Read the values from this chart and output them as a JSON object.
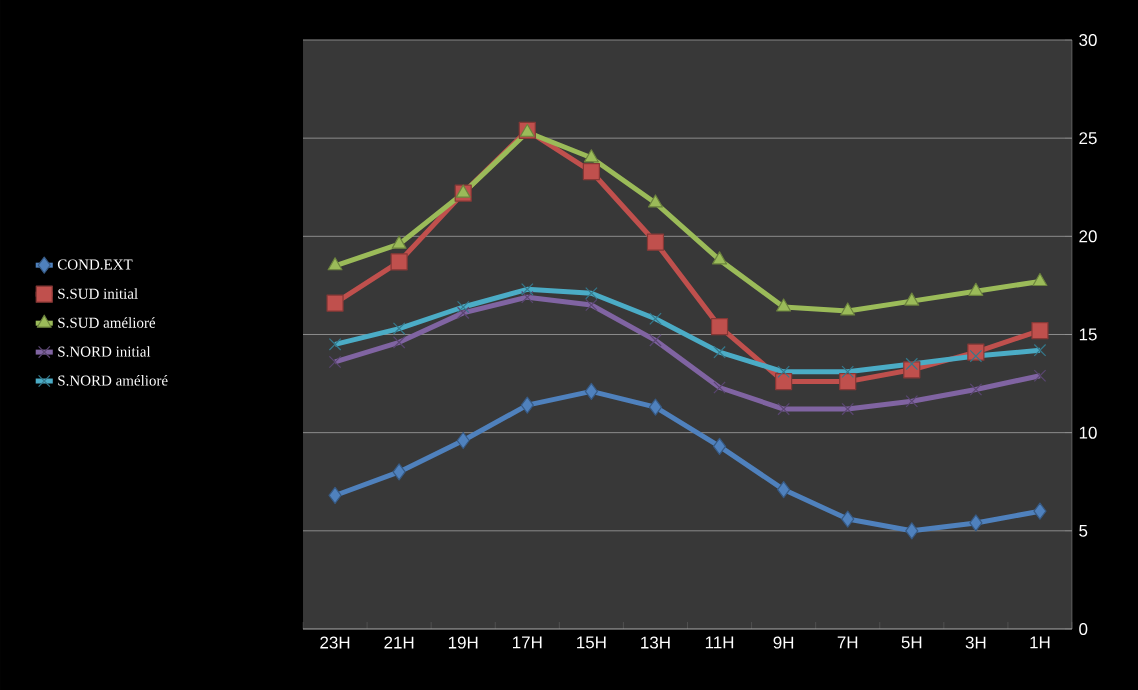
{
  "chart_data": {
    "type": "line",
    "categories": [
      "23H",
      "21H",
      "19H",
      "17H",
      "15H",
      "13H",
      "11H",
      "9H",
      "7H",
      "5H",
      "3H",
      "1H"
    ],
    "series": [
      {
        "name": "COND.EXT",
        "color": "#4f81bd",
        "marker": "diamond",
        "values": [
          6.8,
          8.0,
          9.6,
          11.4,
          12.1,
          11.3,
          9.3,
          7.1,
          5.6,
          5.0,
          5.4,
          6.0
        ]
      },
      {
        "name": "S.SUD initial",
        "color": "#c0504d",
        "marker": "square",
        "values": [
          16.6,
          18.7,
          22.2,
          25.4,
          23.3,
          19.7,
          15.4,
          12.6,
          12.6,
          13.2,
          14.1,
          15.2
        ]
      },
      {
        "name": "S.SUD amélioré",
        "color": "#9bbb59",
        "marker": "triangle",
        "values": [
          18.5,
          19.6,
          22.2,
          25.3,
          24.0,
          21.7,
          18.8,
          16.4,
          16.2,
          16.7,
          17.2,
          17.7
        ]
      },
      {
        "name": "S.NORD initial",
        "color": "#8064a2",
        "marker": "cross",
        "values": [
          13.6,
          14.6,
          16.1,
          16.9,
          16.5,
          14.7,
          12.3,
          11.2,
          11.2,
          11.6,
          12.2,
          12.9
        ]
      },
      {
        "name": "S.NORD amélioré",
        "color": "#4bacc6",
        "marker": "cross",
        "values": [
          14.5,
          15.3,
          16.4,
          17.3,
          17.1,
          15.8,
          14.1,
          13.1,
          13.1,
          13.5,
          13.9,
          14.2
        ]
      }
    ],
    "ylim": [
      0,
      30
    ],
    "yticks": [
      0,
      5,
      10,
      15,
      20,
      25,
      30
    ],
    "grid": "y",
    "legend": "left"
  }
}
